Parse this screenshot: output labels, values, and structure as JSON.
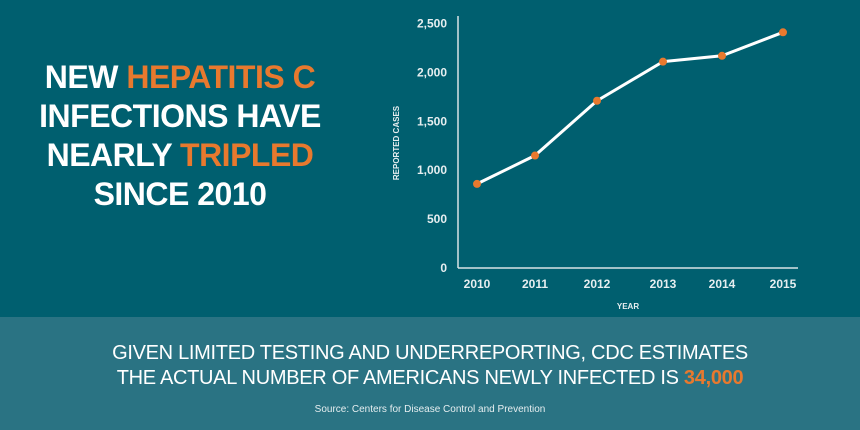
{
  "headline": {
    "line1_a": "NEW ",
    "line1_b": "HEPATITIS C",
    "line2": "INFECTIONS HAVE",
    "line3_a": "NEARLY ",
    "line3_b": "TRIPLED",
    "line4": "SINCE 2010"
  },
  "footer": {
    "line1": "GIVEN LIMITED TESTING AND UNDERREPORTING, CDC ESTIMATES",
    "line2": "THE ACTUAL NUMBER OF AMERICANS NEWLY INFECTED IS ",
    "highlight": "34,000",
    "source": "Source: Centers for Disease Control and Prevention"
  },
  "colors": {
    "background": "#005f6f",
    "band": "#2a7383",
    "accent": "#e8792e",
    "line": "#ffffff"
  },
  "chart_data": {
    "type": "line",
    "categories": [
      "2010",
      "2011",
      "2012",
      "2013",
      "2014",
      "2015"
    ],
    "values": [
      860,
      1150,
      1710,
      2110,
      2170,
      2410
    ],
    "xlabel": "YEAR",
    "ylabel": "REPORTED CASES",
    "ylim": [
      0,
      2500
    ],
    "yticks": [
      0,
      500,
      1000,
      1500,
      2000,
      2500
    ],
    "ytick_labels": [
      "0",
      "500",
      "1,000",
      "1,500",
      "2,000",
      "2,500"
    ],
    "grid": false
  }
}
